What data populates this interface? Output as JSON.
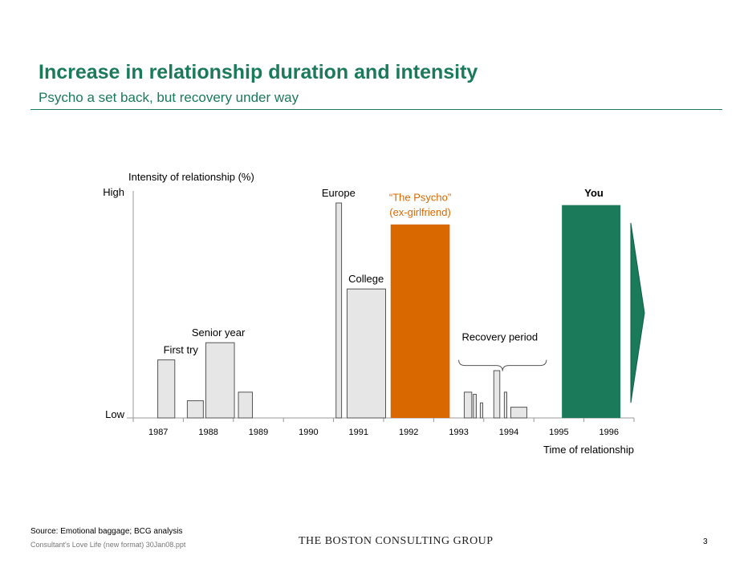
{
  "header": {
    "title": "Increase in relationship duration and intensity",
    "subtitle": "Psycho a set back, but recovery under way"
  },
  "chart_data": {
    "type": "bar",
    "title": "",
    "ylabel": "Intensity of relationship (%)",
    "xlabel": "Time of relationship",
    "y_high_label": "High",
    "y_low_label": "Low",
    "ylim": [
      0,
      100
    ],
    "xlim": [
      1986.5,
      1996.5
    ],
    "x_ticks": [
      "1987",
      "1988",
      "1989",
      "1990",
      "1991",
      "1992",
      "1993",
      "1994",
      "1995",
      "1996"
    ],
    "colors": {
      "default": "#e6e6e6",
      "psycho": "#d96800",
      "you": "#1a7a5a",
      "label_psycho": "#d96800"
    },
    "bars": [
      {
        "start": 1986.99,
        "end": 1987.33,
        "value": 27,
        "color": "default"
      },
      {
        "start": 1987.58,
        "end": 1987.9,
        "value": 8,
        "color": "default"
      },
      {
        "start": 1987.95,
        "end": 1988.52,
        "value": 35,
        "color": "default"
      },
      {
        "start": 1988.6,
        "end": 1988.88,
        "value": 12,
        "color": "default"
      },
      {
        "start": 1990.55,
        "end": 1990.66,
        "value": 100,
        "color": "default"
      },
      {
        "start": 1990.77,
        "end": 1991.54,
        "value": 60,
        "color": "default"
      },
      {
        "start": 1991.64,
        "end": 1992.82,
        "value": 90,
        "color": "psycho"
      },
      {
        "start": 1993.11,
        "end": 1993.26,
        "value": 12,
        "color": "default"
      },
      {
        "start": 1993.29,
        "end": 1993.35,
        "value": 11,
        "color": "default"
      },
      {
        "start": 1993.43,
        "end": 1993.48,
        "value": 7,
        "color": "default"
      },
      {
        "start": 1993.7,
        "end": 1993.82,
        "value": 22,
        "color": "default"
      },
      {
        "start": 1993.91,
        "end": 1993.96,
        "value": 12,
        "color": "default"
      },
      {
        "start": 1994.04,
        "end": 1994.36,
        "value": 5,
        "color": "default"
      },
      {
        "start": 1995.06,
        "end": 1996.23,
        "value": 99,
        "color": "you"
      }
    ],
    "annotations": [
      {
        "text": "First try",
        "x": 1987.45,
        "y": 30
      },
      {
        "text": "Senior year",
        "x": 1988.2,
        "y": 38
      },
      {
        "text": "Europe",
        "x": 1990.6,
        "y": 103
      },
      {
        "text": "College",
        "x": 1991.15,
        "y": 63
      },
      {
        "text": "“The Psycho”",
        "x": 1992.23,
        "y": 101,
        "color": "label_psycho"
      },
      {
        "text": "(ex-girlfriend)",
        "x": 1992.23,
        "y": 94,
        "color": "label_psycho"
      },
      {
        "text": "Recovery period",
        "x": 1993.82,
        "y": 36
      },
      {
        "text": "You",
        "x": 1995.7,
        "y": 103,
        "bold": true
      }
    ],
    "brace": {
      "start": 1993.0,
      "end": 1994.75,
      "y": 27
    },
    "arrow": "right"
  },
  "footer": {
    "source": "Source: Emotional baggage; BCG analysis",
    "file": "Consultant's Love Life (new format) 30Jan08.ppt",
    "logo": "THE BOSTON CONSULTING GROUP",
    "page": "3"
  }
}
